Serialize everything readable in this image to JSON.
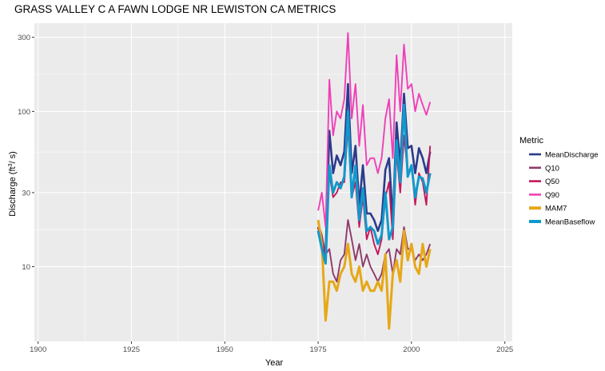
{
  "chart_data": {
    "type": "line",
    "title": "GRASS VALLEY C A FAWN LODGE NR LEWISTON CA  METRICS",
    "xlabel": "Year",
    "ylabel": "Discharge (ft",
    "ylabel_sup": "3",
    "ylabel_tail": "/ s)",
    "xlim": [
      1899,
      2027
    ],
    "ylim": [
      3.3,
      370
    ],
    "yscale": "log",
    "x_ticks": [
      1900,
      1925,
      1950,
      1975,
      2000,
      2025
    ],
    "y_ticks": [
      10,
      30,
      100,
      300
    ],
    "grid": true,
    "legend_title": "Metric",
    "legend_position": "right",
    "x": [
      1975,
      1976,
      1977,
      1978,
      1979,
      1980,
      1981,
      1982,
      1983,
      1984,
      1985,
      1986,
      1987,
      1988,
      1989,
      1990,
      1991,
      1992,
      1993,
      1994,
      1995,
      1996,
      1997,
      1998,
      1999,
      2000,
      2001,
      2002,
      2003,
      2004,
      2005
    ],
    "series": [
      {
        "name": "MeanDischarge",
        "color": "#2B3A8C",
        "values": [
          18,
          14,
          12,
          75,
          40,
          52,
          45,
          55,
          150,
          40,
          60,
          25,
          45,
          22,
          22,
          20,
          17,
          20,
          42,
          50,
          20,
          85,
          45,
          130,
          58,
          60,
          40,
          58,
          50,
          40,
          55
        ]
      },
      {
        "name": "Q10",
        "color": "#8E3A6B",
        "values": [
          19,
          16,
          12,
          13,
          9,
          8,
          11,
          12,
          20,
          15,
          11,
          14,
          10,
          12,
          10,
          9,
          8,
          9,
          12,
          13,
          9,
          13,
          12,
          18,
          13,
          13,
          11,
          12,
          11,
          12,
          14
        ]
      },
      {
        "name": "Q50",
        "color": "#C2185B",
        "values": [
          18,
          14,
          12,
          40,
          28,
          30,
          35,
          35,
          80,
          28,
          35,
          18,
          28,
          15,
          18,
          14,
          12,
          15,
          28,
          35,
          15,
          55,
          30,
          70,
          40,
          45,
          25,
          40,
          35,
          25,
          60
        ]
      },
      {
        "name": "Q90",
        "color": "#F03FB7",
        "values": [
          23,
          30,
          18,
          160,
          70,
          100,
          90,
          120,
          320,
          90,
          150,
          60,
          110,
          45,
          50,
          50,
          40,
          50,
          90,
          120,
          50,
          230,
          100,
          270,
          140,
          150,
          100,
          130,
          110,
          95,
          115
        ]
      },
      {
        "name": "MAM7",
        "color": "#E6A817",
        "values": [
          20,
          14,
          4.5,
          8,
          8,
          7,
          9,
          10,
          14,
          9,
          8,
          10,
          7,
          8,
          7,
          7,
          8,
          7,
          12,
          4,
          9,
          11,
          8,
          17,
          11,
          14,
          10,
          9,
          14,
          10,
          13
        ]
      },
      {
        "name": "MeanBaseflow",
        "color": "#1199CC",
        "values": [
          17,
          13,
          10.5,
          45,
          30,
          35,
          32,
          38,
          100,
          28,
          45,
          20,
          32,
          17,
          18,
          17,
          14,
          16,
          30,
          15,
          18,
          65,
          35,
          110,
          38,
          45,
          28,
          38,
          37,
          30,
          40
        ]
      }
    ]
  }
}
